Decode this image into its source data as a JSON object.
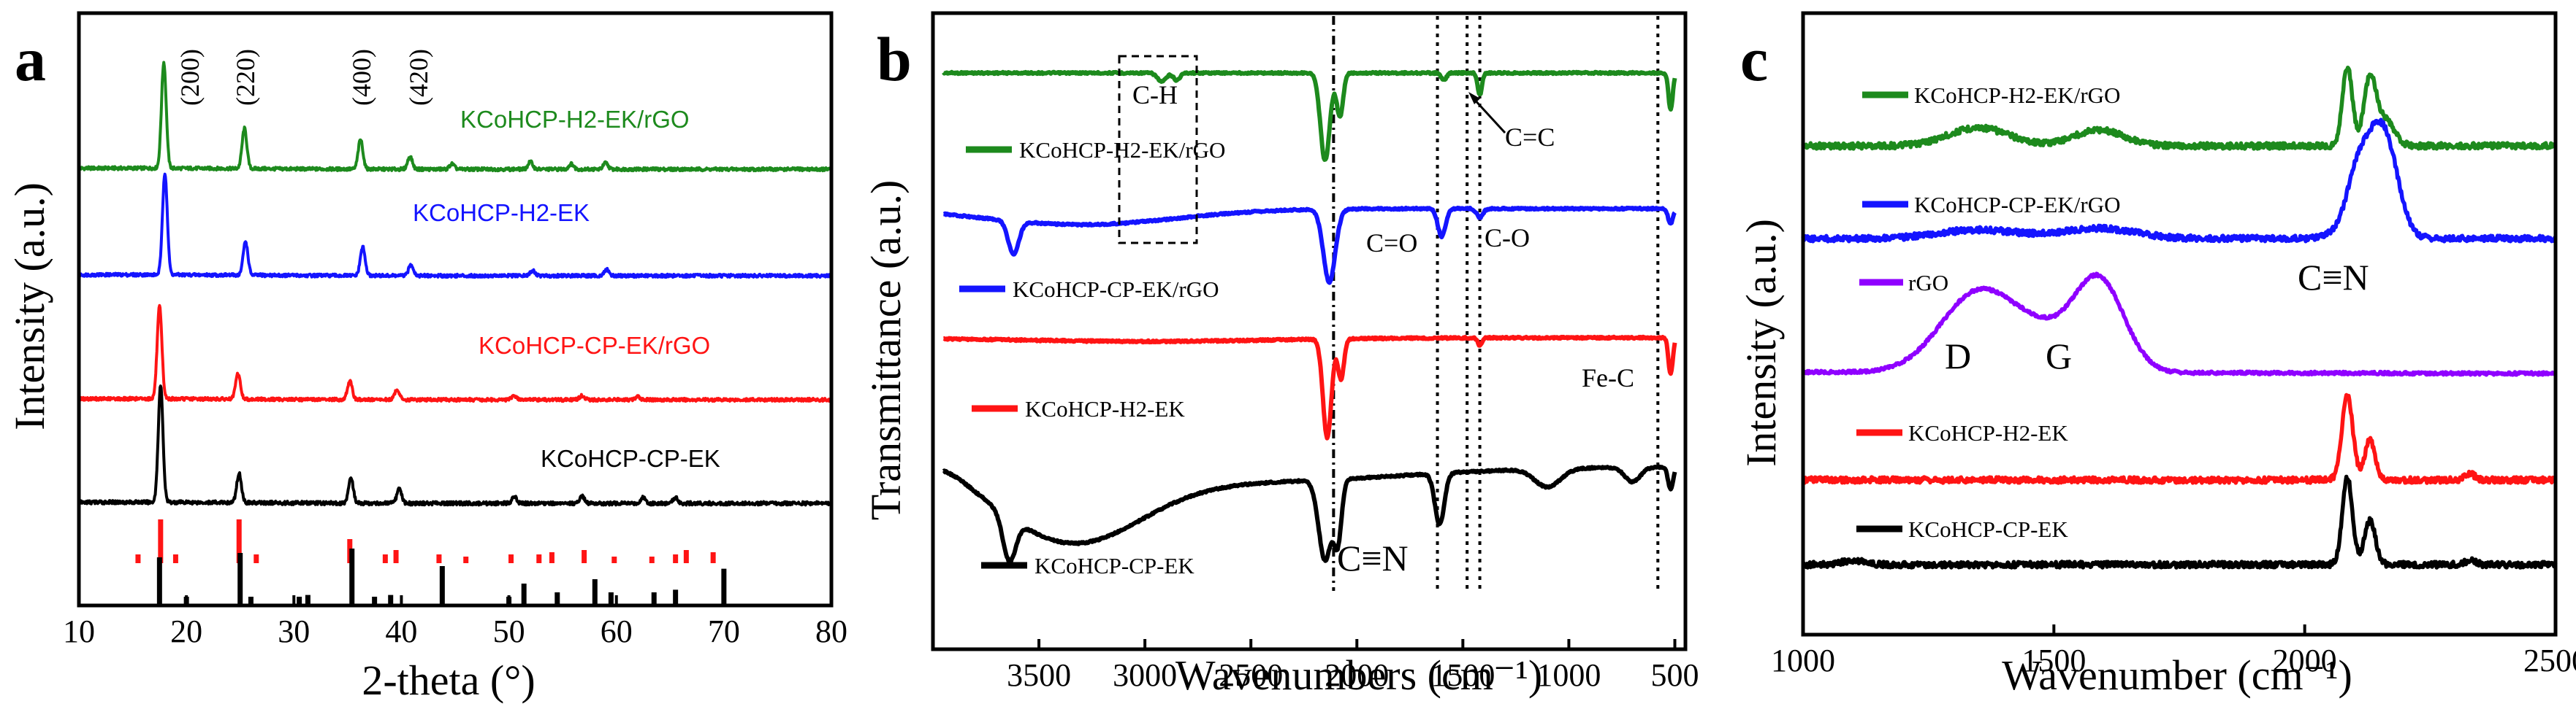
{
  "colors": {
    "green": "#1d8a1d",
    "blue": "#1414ff",
    "red": "#ff1414",
    "black": "#000000",
    "purple": "#8f00ff"
  },
  "chart_data": [
    {
      "panel": "a",
      "type": "line",
      "xlabel": "2-theta (°)",
      "ylabel": "Intensity (a.u.)",
      "xlim": [
        10,
        80
      ],
      "xticks": [
        "10",
        "20",
        "30",
        "40",
        "50",
        "60",
        "70",
        "80"
      ],
      "peak_labels": [
        "(200)",
        "(220)",
        "(400)",
        "(420)"
      ],
      "series": [
        {
          "name": "KCoHCP-H2-EK/rGO",
          "color": "green",
          "peaks": [
            [
              17.9,
              100
            ],
            [
              25.4,
              38
            ],
            [
              36.2,
              28
            ],
            [
              40.8,
              12
            ],
            [
              44.7,
              5
            ],
            [
              52.0,
              7
            ],
            [
              55.8,
              5
            ],
            [
              59.0,
              6
            ]
          ]
        },
        {
          "name": "KCoHCP-H2-EK",
          "color": "blue",
          "peaks": [
            [
              18.0,
              100
            ],
            [
              25.5,
              33
            ],
            [
              36.4,
              28
            ],
            [
              40.9,
              11
            ],
            [
              52.2,
              5
            ],
            [
              59.1,
              6
            ]
          ]
        },
        {
          "name": "KCoHCP-CP-EK/rGO",
          "color": "red",
          "peaks": [
            [
              17.5,
              90
            ],
            [
              24.8,
              25
            ],
            [
              35.2,
              18
            ],
            [
              39.6,
              10
            ],
            [
              50.5,
              4
            ],
            [
              56.8,
              4
            ],
            [
              62.0,
              3
            ]
          ]
        },
        {
          "name": "KCoHCP-CP-EK",
          "color": "black",
          "peaks": [
            [
              17.6,
              100
            ],
            [
              24.9,
              25
            ],
            [
              35.3,
              22
            ],
            [
              39.8,
              12
            ],
            [
              50.5,
              6
            ],
            [
              56.8,
              6
            ],
            [
              62.5,
              5
            ],
            [
              65.5,
              5
            ]
          ]
        }
      ],
      "references": [
        {
          "color": "red",
          "lines": [
            [
              15.5,
              0.2
            ],
            [
              17.6,
              1.0
            ],
            [
              19.0,
              0.2
            ],
            [
              24.9,
              1.0
            ],
            [
              26.5,
              0.2
            ],
            [
              35.2,
              0.55
            ],
            [
              38.5,
              0.2
            ],
            [
              39.5,
              0.3
            ],
            [
              43.5,
              0.2
            ],
            [
              46,
              0.15
            ],
            [
              50.2,
              0.2
            ],
            [
              52.8,
              0.2
            ],
            [
              54,
              0.25
            ],
            [
              57,
              0.3
            ],
            [
              59.8,
              0.15
            ],
            [
              63.3,
              0.15
            ],
            [
              65.5,
              0.2
            ],
            [
              66.5,
              0.3
            ],
            [
              69,
              0.25
            ]
          ]
        },
        {
          "color": "black",
          "lines": [
            [
              17.5,
              0.55
            ],
            [
              20,
              0.1
            ],
            [
              25,
              0.6
            ],
            [
              26,
              0.1
            ],
            [
              30.5,
              0.1
            ],
            [
              31.3,
              0.12
            ],
            [
              35.4,
              0.65
            ],
            [
              37.5,
              0.1
            ],
            [
              39,
              0.12
            ],
            [
              43.8,
              0.45
            ],
            [
              50,
              0.1
            ],
            [
              51.4,
              0.25
            ],
            [
              54.5,
              0.15
            ],
            [
              58,
              0.3
            ],
            [
              59.5,
              0.15
            ],
            [
              63.5,
              0.15
            ],
            [
              65.5,
              0.18
            ],
            [
              70,
              0.42
            ]
          ]
        }
      ]
    },
    {
      "panel": "b",
      "type": "line",
      "xlabel": "Wavenumbers (cm⁻¹)",
      "ylabel": "Transmittance (a.u.)",
      "xlim": [
        4000,
        450
      ],
      "xticks": [
        "3500",
        "3000",
        "2500",
        "2000",
        "1500",
        "1000",
        "500"
      ],
      "annotations": [
        "C-H",
        "C=C",
        "C=O",
        "C-O",
        "Fe-C",
        "C≡N"
      ],
      "series": [
        {
          "name": "KCoHCP-H2-EK/rGO",
          "color": "green"
        },
        {
          "name": "KCoHCP-CP-EK/rGO",
          "color": "blue"
        },
        {
          "name": "KCoHCP-H2-EK",
          "color": "red"
        },
        {
          "name": "KCoHCP-CP-EK",
          "color": "black"
        }
      ]
    },
    {
      "panel": "c",
      "type": "line",
      "xlabel": "Wavenumber (cm⁻¹)",
      "ylabel": "Intensity (a.u.)",
      "xlim": [
        1000,
        2500
      ],
      "xticks": [
        "1000",
        "1500",
        "2000",
        "2500"
      ],
      "annotations": [
        "D",
        "G",
        "C≡N"
      ],
      "series": [
        {
          "name": "KCoHCP-H2-EK/rGO",
          "color": "green"
        },
        {
          "name": "KCoHCP-CP-EK/rGO",
          "color": "blue"
        },
        {
          "name": "rGO",
          "color": "purple"
        },
        {
          "name": "KCoHCP-H2-EK",
          "color": "red"
        },
        {
          "name": "KCoHCP-CP-EK",
          "color": "black"
        }
      ]
    }
  ]
}
